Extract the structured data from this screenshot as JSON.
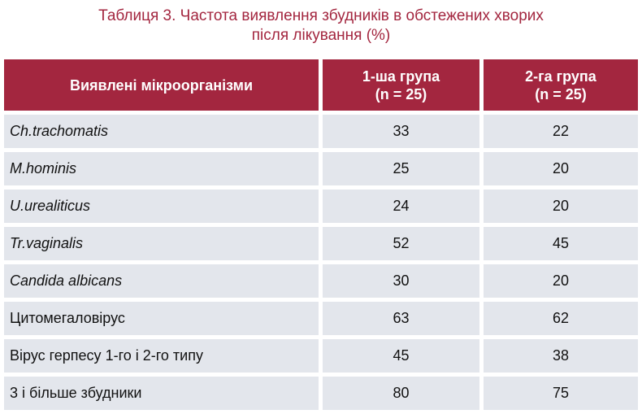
{
  "caption": {
    "line1": "Таблиця 3.  Частота виявлення збудників в обстежених хворих",
    "line2": "після лікування (%)"
  },
  "header": {
    "col1": "Виявлені мікроорганізми",
    "col2_line1": "1-ша група",
    "col2_line2": "(n = 25)",
    "col3_line1": "2-га група",
    "col3_line2": "(n = 25)"
  },
  "rows": [
    {
      "name": "Ch.trachomatis",
      "g1": "33",
      "g2": "22",
      "italic": true
    },
    {
      "name": "M.hominis",
      "g1": "25",
      "g2": "20",
      "italic": true
    },
    {
      "name": "U.urealiticus",
      "g1": "24",
      "g2": "20",
      "italic": true
    },
    {
      "name": "Tr.vaginalis",
      "g1": "52",
      "g2": "45",
      "italic": true
    },
    {
      "name": "Candida albicans",
      "g1": "30",
      "g2": "20",
      "italic": true
    },
    {
      "name": "Цитомегаловірус",
      "g1": "63",
      "g2": "62",
      "italic": false
    },
    {
      "name": "Вірус герпесу 1-го і 2-го типу",
      "g1": "45",
      "g2": "38",
      "italic": false
    },
    {
      "name": "3 і більше збудники",
      "g1": "80",
      "g2": "75",
      "italic": false
    }
  ],
  "colors": {
    "accent": "#a3263f",
    "row_bg": "#e3e6ec",
    "text": "#111111"
  }
}
